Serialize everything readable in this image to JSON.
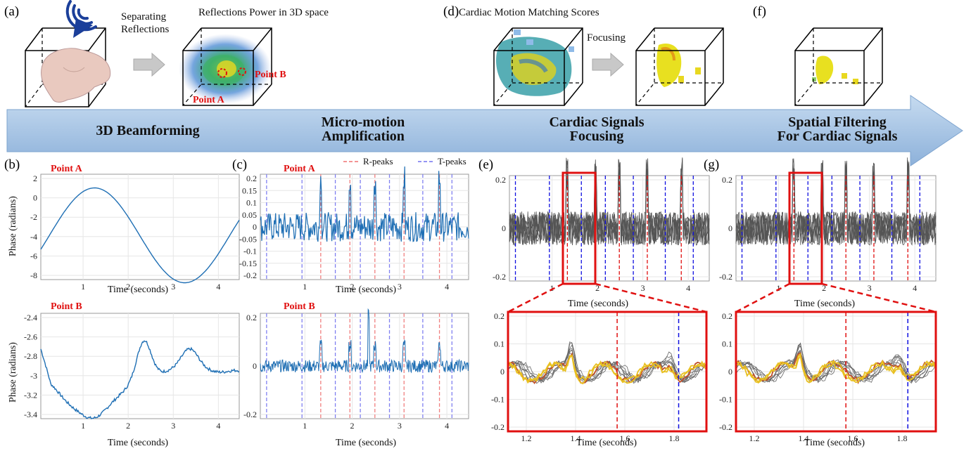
{
  "panel_labels": [
    "(a)",
    "(b)",
    "(c)",
    "(d)",
    "(e)",
    "(f)",
    "(g)"
  ],
  "top": {
    "separating": [
      "Separating",
      "Reflections"
    ],
    "reflections_title": "Reflections Power in 3D space",
    "point_a": "Point A",
    "point_b": "Point B",
    "matching_title": "Cardiac Motion Matching Scores",
    "focusing": "Focusing"
  },
  "stages": {
    "s1": [
      "3D Beamforming"
    ],
    "s2": [
      "Micro-motion",
      "Amplification"
    ],
    "s3": [
      "Cardiac Signals",
      "Focusing"
    ],
    "s4": [
      "Spatial Filtering",
      "For Cardiac Signals"
    ]
  },
  "legend": {
    "r": "R-peaks",
    "t": "T-peaks"
  },
  "axes": {
    "xlabel": "Time (seconds)",
    "ylabel": "Phase (radians)",
    "b_top_yticks": [
      "2",
      "0",
      "-2",
      "-4",
      "-6",
      "-8"
    ],
    "b_bot_yticks": [
      "-2.4",
      "-2.6",
      "-2.8",
      "-3",
      "-3.2",
      "-3.4"
    ],
    "c_top_yticks": [
      "0.2",
      "0.15",
      "0.1",
      "0.05",
      "0",
      "-0.05",
      "-0.1",
      "-0.15",
      "-0.2"
    ],
    "c_bot_yticks": [
      "0.2",
      "0",
      "-0.2"
    ],
    "e_top_yticks": [
      "0.2",
      "0",
      "-0.2"
    ],
    "zoom_yticks": [
      "0.2",
      "0.1",
      "0",
      "-0.1",
      "-0.2"
    ],
    "xticks": [
      "1",
      "2",
      "3",
      "4"
    ],
    "zoom_xticks": [
      "1.2",
      "1.4",
      "1.6",
      "1.8"
    ]
  },
  "colors": {
    "blue_line": "#1f6fb4",
    "gray": "#555555",
    "red": "#e01010",
    "arrow": "#8fb3dc"
  }
}
